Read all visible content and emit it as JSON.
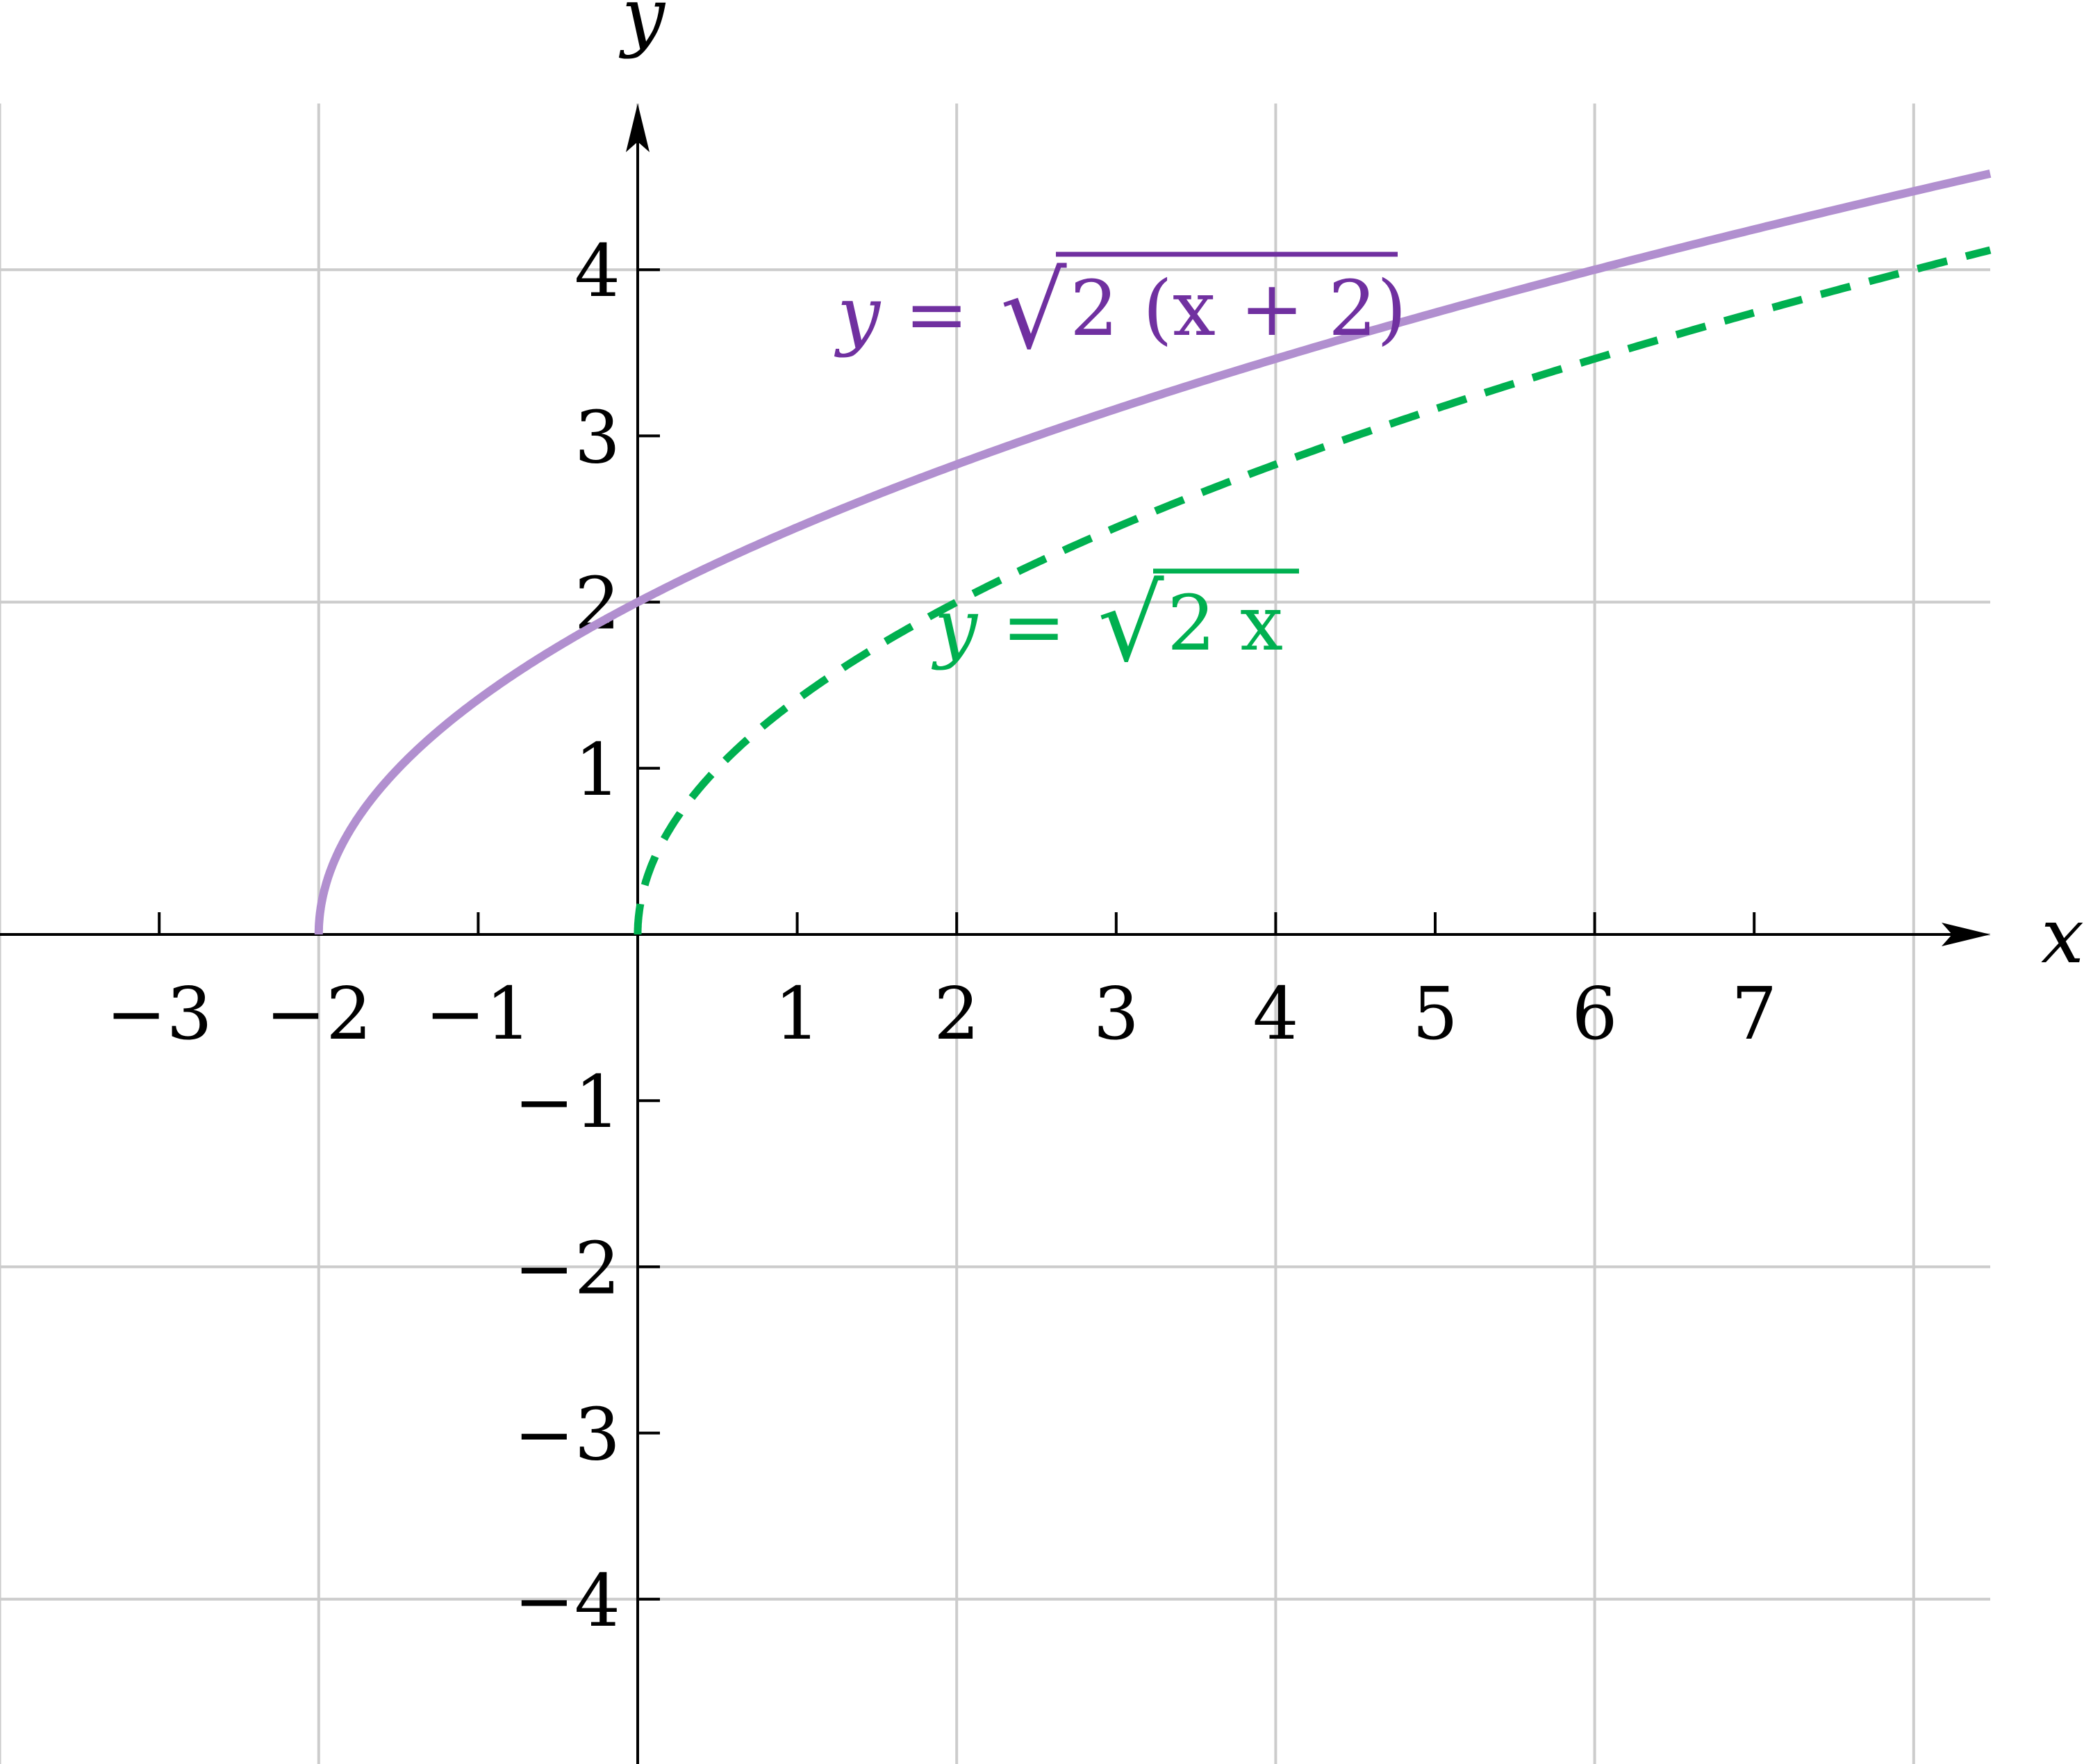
{
  "chart_data": {
    "type": "line",
    "title": "",
    "xlabel": "x",
    "ylabel": "y",
    "xlim": [
      -4,
      8.48
    ],
    "ylim": [
      -5,
      5
    ],
    "grid": true,
    "grid_step": 2,
    "x_ticks": [
      -3,
      -2,
      -1,
      1,
      2,
      3,
      4,
      5,
      6,
      7
    ],
    "y_ticks": [
      -4,
      -3,
      -2,
      -1,
      1,
      2,
      3,
      4
    ],
    "x_tick_labels": [
      "−3",
      "−2",
      "−1",
      "1",
      "2",
      "3",
      "4",
      "5",
      "6",
      "7"
    ],
    "y_tick_labels": [
      "−4",
      "−3",
      "−2",
      "−1",
      "1",
      "2",
      "3",
      "4"
    ],
    "series": [
      {
        "name": "y = √2 (x + 2)",
        "function": "sqrt(2*(x+2))",
        "domain": [
          -2,
          8.48
        ],
        "style": "solid",
        "color": "#B18FCF",
        "label_color": "#7030A0",
        "label_prefix": "y =",
        "label_radicand": "2 (x + 2)"
      },
      {
        "name": "y = √2 x",
        "function": "sqrt(2*x)",
        "domain": [
          0,
          8.48
        ],
        "style": "dashed",
        "color": "#00B050",
        "label_color": "#00B050",
        "label_prefix": "y =",
        "label_radicand": "2 x"
      }
    ]
  }
}
